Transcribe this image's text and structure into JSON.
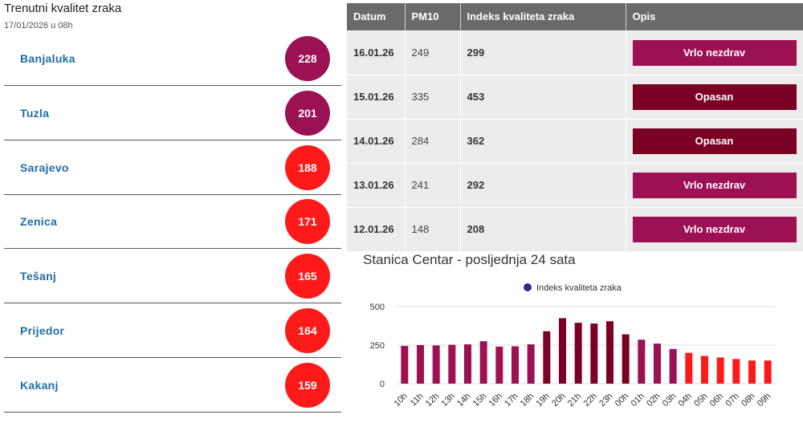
{
  "current": {
    "title": "Trenutni kvalitet zraka",
    "date": "17/01/2026 u 08h",
    "cities": [
      {
        "name": "Banjaluka",
        "aqi": "228",
        "color": "#9c1054"
      },
      {
        "name": "Tuzla",
        "aqi": "201",
        "color": "#9c1054"
      },
      {
        "name": "Sarajevo",
        "aqi": "188",
        "color": "#ff1a1a"
      },
      {
        "name": "Zenica",
        "aqi": "171",
        "color": "#ff1a1a"
      },
      {
        "name": "Tešanj",
        "aqi": "165",
        "color": "#ff1a1a"
      },
      {
        "name": "Prijedor",
        "aqi": "164",
        "color": "#ff1a1a"
      },
      {
        "name": "Kakanj",
        "aqi": "159",
        "color": "#ff1a1a"
      }
    ]
  },
  "history": {
    "headers": {
      "date": "Datum",
      "pm10": "PM10",
      "aqi": "Indeks kvaliteta zraka",
      "desc": "Opis"
    },
    "rows": [
      {
        "date": "16.01.26",
        "pm10": "249",
        "aqi": "299",
        "desc": "Vrlo nezdrav",
        "color": "#9c1054"
      },
      {
        "date": "15.01.26",
        "pm10": "335",
        "aqi": "453",
        "desc": "Opasan",
        "color": "#7a0024"
      },
      {
        "date": "14.01.26",
        "pm10": "284",
        "aqi": "362",
        "desc": "Opasan",
        "color": "#7a0024"
      },
      {
        "date": "13.01.26",
        "pm10": "241",
        "aqi": "292",
        "desc": "Vrlo nezdrav",
        "color": "#9c1054"
      },
      {
        "date": "12.01.26",
        "pm10": "148",
        "aqi": "208",
        "desc": "Vrlo nezdrav",
        "color": "#9c1054"
      }
    ]
  },
  "chart_title": "Stanica Centar - posljednja 24 sata",
  "chart_data": {
    "type": "bar",
    "title": "Stanica Centar - posljednja 24 sata",
    "series_name": "Indeks kvaliteta zraka",
    "legend_color": "#2e2a94",
    "categories": [
      "10h",
      "11h",
      "12h",
      "13h",
      "14h",
      "15h",
      "16h",
      "17h",
      "18h",
      "19h",
      "20h",
      "21h",
      "22h",
      "23h",
      "00h",
      "01h",
      "02h",
      "03h",
      "04h",
      "05h",
      "06h",
      "07h",
      "08h",
      "09h"
    ],
    "values": [
      245,
      250,
      248,
      252,
      255,
      275,
      240,
      242,
      255,
      340,
      425,
      395,
      390,
      405,
      320,
      285,
      260,
      225,
      200,
      180,
      170,
      160,
      150,
      150
    ],
    "colors": [
      "#9c1054",
      "#9c1054",
      "#9c1054",
      "#9c1054",
      "#9c1054",
      "#9c1054",
      "#9c1054",
      "#9c1054",
      "#9c1054",
      "#7a0024",
      "#7a0024",
      "#7a0024",
      "#7a0024",
      "#7a0024",
      "#7a0024",
      "#9c1054",
      "#9c1054",
      "#9c1054",
      "#ff1a1a",
      "#ff1a1a",
      "#ff1a1a",
      "#ff1a1a",
      "#ff1a1a",
      "#ff1a1a"
    ],
    "ylim": [
      0,
      500
    ],
    "yticks": [
      "0",
      "250",
      "500"
    ],
    "grid": true,
    "legend_position": "top-center"
  }
}
